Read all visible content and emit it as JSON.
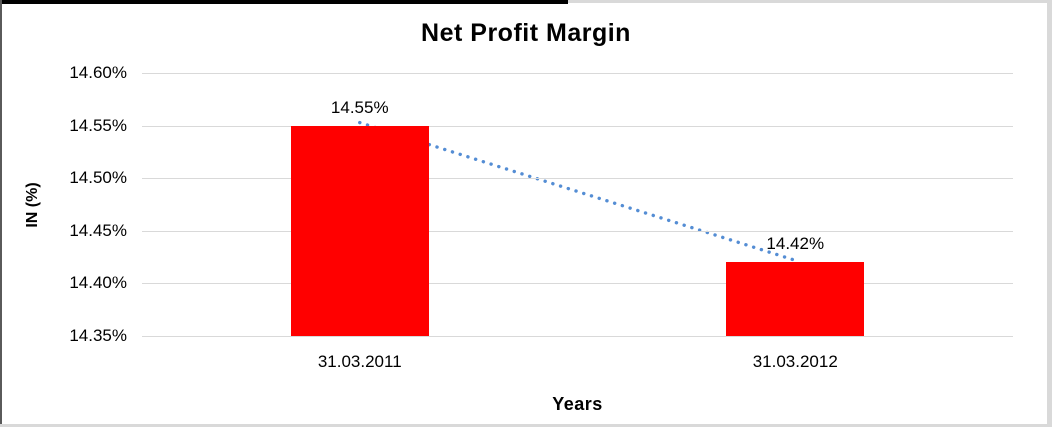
{
  "title": "Net Profit Margin",
  "colors": {
    "bar": "#ff0000",
    "trendline": "#548dd4",
    "gridline": "#d9d9d9",
    "text": "#000000",
    "background": "#ffffff"
  },
  "chart_data": {
    "type": "bar",
    "title": "Net Profit Margin",
    "categories": [
      "31.03.2011",
      "31.03.2012"
    ],
    "values": [
      14.55,
      14.42
    ],
    "data_labels": [
      "14.55%",
      "14.42%"
    ],
    "xlabel": "Years",
    "ylabel": "IN (%)",
    "ylim": [
      14.35,
      14.6
    ],
    "ytick_step": 0.05,
    "ytick_labels": [
      "14.35%",
      "14.40%",
      "14.45%",
      "14.50%",
      "14.55%",
      "14.60%"
    ],
    "grid": true,
    "legend_position": "none",
    "trendline": {
      "style": "dotted",
      "from_category": "31.03.2011",
      "to_category": "31.03.2012"
    }
  }
}
